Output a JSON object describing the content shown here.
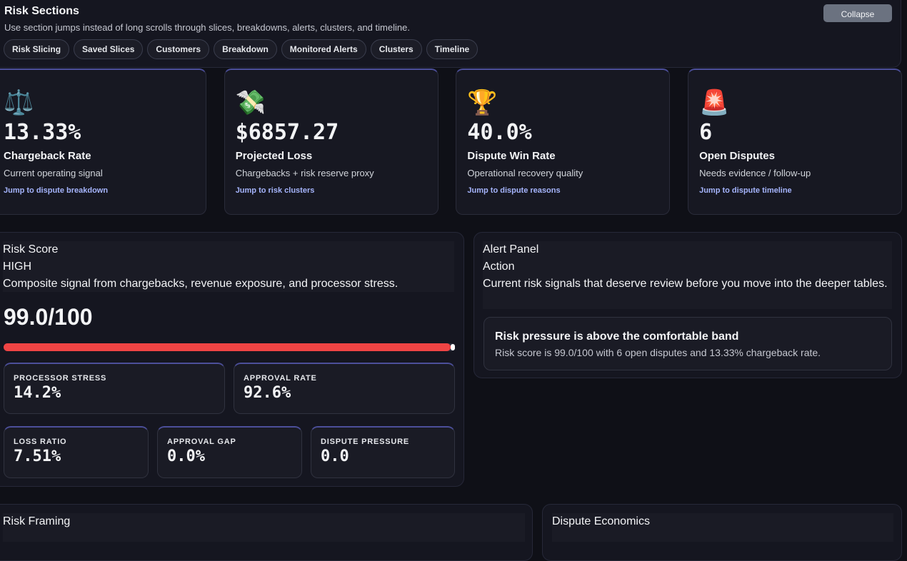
{
  "header": {
    "title": "Risk Sections",
    "subtitle": "Use section jumps instead of long scrolls through slices, breakdowns, alerts, clusters, and timeline.",
    "button": "Collapse",
    "tabs": [
      "Risk Slicing",
      "Saved Slices",
      "Customers",
      "Breakdown",
      "Monitored Alerts",
      "Clusters",
      "Timeline"
    ]
  },
  "kpis": [
    {
      "icon": "⚖️",
      "value": "13.33%",
      "label": "Chargeback Rate",
      "description": "Current operating signal",
      "link": "Jump to dispute breakdown"
    },
    {
      "icon": "💸",
      "value": "$6857.27",
      "label": "Projected Loss",
      "description": "Chargebacks + risk reserve proxy",
      "link": "Jump to risk clusters"
    },
    {
      "icon": "🏆",
      "value": "40.0%",
      "label": "Dispute Win Rate",
      "description": "Operational recovery quality",
      "link": "Jump to dispute reasons"
    },
    {
      "icon": "🚨",
      "value": "6",
      "label": "Open Disputes",
      "description": "Needs evidence / follow-up",
      "link": "Jump to dispute timeline"
    }
  ],
  "risk_score": {
    "title": "Risk Score",
    "level": "HIGH",
    "description": "Composite signal from chargebacks, revenue exposure, and processor stress.",
    "score": {
      "value": 99,
      "max": 100,
      "label": "99.0/100"
    },
    "metrics": [
      {
        "label": "PROCESSOR STRESS",
        "value": "14.2%"
      },
      {
        "label": "APPROVAL RATE",
        "value": "92.6%"
      },
      {
        "label": "LOSS RATIO",
        "value": "7.51%"
      },
      {
        "label": "APPROVAL GAP",
        "value": "0.0%"
      },
      {
        "label": "DISPUTE PRESSURE",
        "value": "0.0"
      }
    ]
  },
  "alert_panel": {
    "title": "Alert Panel",
    "subtitle": "Action",
    "description": "Current risk signals that deserve review before you move into the deeper tables.",
    "alerts": [
      {
        "title": "Risk pressure is above the comfortable band",
        "text": "Risk score is 99.0/100 with 6 open disputes and 13.33% chargeback rate."
      }
    ]
  },
  "sections": [
    {
      "title": "Risk Framing"
    },
    {
      "title": "Dispute Economics"
    }
  ]
}
